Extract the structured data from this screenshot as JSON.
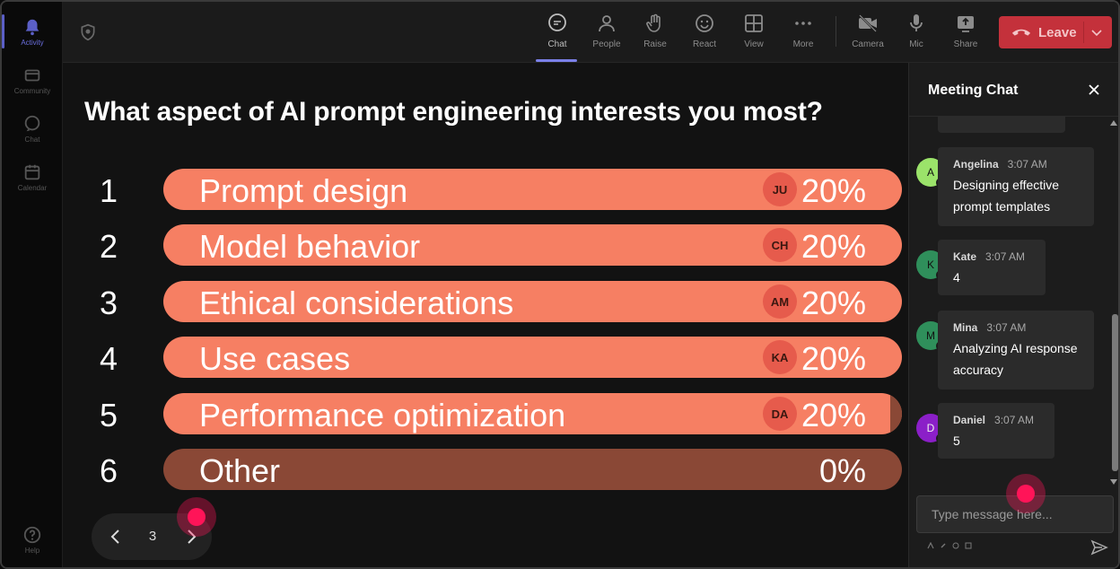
{
  "rail": {
    "items": [
      {
        "label": "Activity",
        "icon": "bell-icon",
        "active": true
      },
      {
        "label": "Community",
        "icon": "community-icon"
      },
      {
        "label": "Chat",
        "icon": "chat-icon"
      },
      {
        "label": "Calendar",
        "icon": "calendar-icon"
      }
    ],
    "help_label": "Help"
  },
  "toolbar": {
    "chat": "Chat",
    "people": "People",
    "raise": "Raise",
    "react": "React",
    "view": "View",
    "more": "More",
    "camera": "Camera",
    "mic": "Mic",
    "share": "Share",
    "leave": "Leave",
    "leave_color": "#c4313b",
    "active_tab_color": "#7b80e8"
  },
  "poll": {
    "question": "What aspect of AI prompt engineering interests you most?",
    "bar_color": "#f67f63",
    "options": [
      {
        "num": "1",
        "label": "Prompt design",
        "avatar": "JU",
        "percent": "20%"
      },
      {
        "num": "2",
        "label": "Model behavior",
        "avatar": "CH",
        "percent": "20%"
      },
      {
        "num": "3",
        "label": "Ethical considerations",
        "avatar": "AM",
        "percent": "20%"
      },
      {
        "num": "4",
        "label": "Use cases",
        "avatar": "KA",
        "percent": "20%"
      },
      {
        "num": "5",
        "label": "Performance optimization",
        "avatar": "DA",
        "percent": "20%"
      },
      {
        "num": "6",
        "label": "Other",
        "avatar": "",
        "percent": "0%"
      }
    ],
    "pager": {
      "page": "3"
    }
  },
  "chat": {
    "title": "Meeting Chat",
    "messages": [
      {
        "initial": "A",
        "name": "Angelina",
        "time": "3:07 AM",
        "text": "Designing effective prompt templates",
        "color": "#9be36a"
      },
      {
        "initial": "K",
        "name": "Kate",
        "time": "3:07 AM",
        "text": "4",
        "color": "#2f8f5b"
      },
      {
        "initial": "M",
        "name": "Mina",
        "time": "3:07 AM",
        "text": "Analyzing AI response accuracy",
        "color": "#2f8f5b"
      },
      {
        "initial": "D",
        "name": "Daniel",
        "time": "3:07 AM",
        "text": "5",
        "color": "#8b1fc8"
      }
    ],
    "placeholder": "Type message here..."
  }
}
